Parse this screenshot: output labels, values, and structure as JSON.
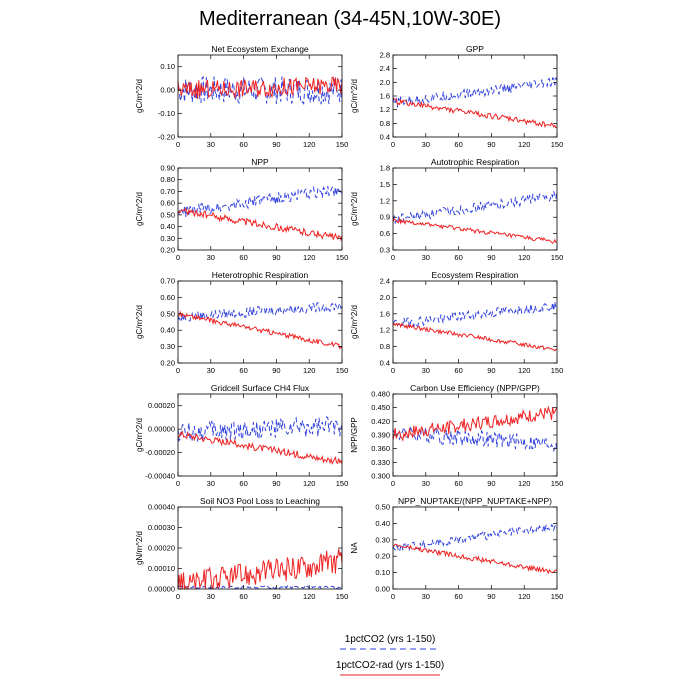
{
  "figure": {
    "title": "Mediterranean (34-45N,10W-30E)",
    "legend": [
      {
        "label": "1pctCO2 (yrs 1-150)",
        "color": "#3344dd",
        "style": "dashed"
      },
      {
        "label": "1pctCO2-rad (yrs 1-150)",
        "color": "#ee2222",
        "style": "solid"
      }
    ]
  },
  "chart_data": [
    {
      "type": "line",
      "title": "Net Ecosystem Exchange",
      "xlabel": "",
      "ylabel": "gC/m^2/d",
      "xlim": [
        0,
        150
      ],
      "ylim": [
        -0.2,
        0.15
      ],
      "xticks": [
        0,
        30,
        60,
        90,
        120,
        150
      ],
      "yticks": [
        -0.2,
        -0.1,
        0,
        0.1
      ],
      "ytick_labels": [
        "-0.20",
        "-0.10",
        "0.00",
        "0.10"
      ],
      "series": [
        {
          "name": "1pctCO2 (yrs 1-150)",
          "start": 0.0,
          "end": 0.0,
          "noise": 0.06
        },
        {
          "name": "1pctCO2-rad (yrs 1-150)",
          "start": 0.0,
          "end": 0.02,
          "noise": 0.04
        }
      ]
    },
    {
      "type": "line",
      "title": "GPP",
      "xlabel": "",
      "ylabel": "gC/m^2/d",
      "xlim": [
        0,
        150
      ],
      "ylim": [
        0.4,
        2.8
      ],
      "xticks": [
        0,
        30,
        60,
        90,
        120,
        150
      ],
      "yticks": [
        0.4,
        0.8,
        1.2,
        1.6,
        2.0,
        2.4,
        2.8
      ],
      "ytick_labels": [
        "0.4",
        "0.8",
        "1.2",
        "1.6",
        "2.0",
        "2.4",
        "2.8"
      ],
      "series": [
        {
          "name": "1pctCO2 (yrs 1-150)",
          "start": 1.4,
          "end": 2.0,
          "noise": 0.15
        },
        {
          "name": "1pctCO2-rad (yrs 1-150)",
          "start": 1.45,
          "end": 0.72,
          "noise": 0.08
        }
      ]
    },
    {
      "type": "line",
      "title": "NPP",
      "xlabel": "",
      "ylabel": "gC/m^2/d",
      "xlim": [
        0,
        150
      ],
      "ylim": [
        0.2,
        0.9
      ],
      "xticks": [
        0,
        30,
        60,
        90,
        120,
        150
      ],
      "yticks": [
        0.2,
        0.3,
        0.4,
        0.5,
        0.6,
        0.7,
        0.8,
        0.9
      ],
      "ytick_labels": [
        "0.20",
        "0.30",
        "0.40",
        "0.50",
        "0.60",
        "0.70",
        "0.80",
        "0.90"
      ],
      "series": [
        {
          "name": "1pctCO2 (yrs 1-150)",
          "start": 0.52,
          "end": 0.72,
          "noise": 0.05
        },
        {
          "name": "1pctCO2-rad (yrs 1-150)",
          "start": 0.54,
          "end": 0.3,
          "noise": 0.03
        }
      ]
    },
    {
      "type": "line",
      "title": "Autotrophic Respiration",
      "xlabel": "",
      "ylabel": "gC/m^2/d",
      "xlim": [
        0,
        150
      ],
      "ylim": [
        0.3,
        1.8
      ],
      "xticks": [
        0,
        30,
        60,
        90,
        120,
        150
      ],
      "yticks": [
        0.3,
        0.6,
        0.9,
        1.2,
        1.5,
        1.8
      ],
      "ytick_labels": [
        "0.3",
        "0.6",
        "0.9",
        "1.2",
        "1.5",
        "1.8"
      ],
      "series": [
        {
          "name": "1pctCO2 (yrs 1-150)",
          "start": 0.85,
          "end": 1.3,
          "noise": 0.09
        },
        {
          "name": "1pctCO2-rad (yrs 1-150)",
          "start": 0.85,
          "end": 0.45,
          "noise": 0.04
        }
      ]
    },
    {
      "type": "line",
      "title": "Heterotrophic Respiration",
      "xlabel": "",
      "ylabel": "gC/m^2/d",
      "xlim": [
        0,
        150
      ],
      "ylim": [
        0.2,
        0.7
      ],
      "xticks": [
        0,
        30,
        60,
        90,
        120,
        150
      ],
      "yticks": [
        0.2,
        0.3,
        0.4,
        0.5,
        0.6,
        0.7
      ],
      "ytick_labels": [
        "0.20",
        "0.30",
        "0.40",
        "0.50",
        "0.60",
        "0.70"
      ],
      "series": [
        {
          "name": "1pctCO2 (yrs 1-150)",
          "start": 0.48,
          "end": 0.55,
          "noise": 0.03
        },
        {
          "name": "1pctCO2-rad (yrs 1-150)",
          "start": 0.5,
          "end": 0.3,
          "noise": 0.015
        }
      ]
    },
    {
      "type": "line",
      "title": "Ecosystem Respiration",
      "xlabel": "",
      "ylabel": "gC/m^2/d",
      "xlim": [
        0,
        150
      ],
      "ylim": [
        0.4,
        2.4
      ],
      "xticks": [
        0,
        30,
        60,
        90,
        120,
        150
      ],
      "yticks": [
        0.4,
        0.8,
        1.2,
        1.6,
        2.0,
        2.4
      ],
      "ytick_labels": [
        "0.4",
        "0.8",
        "1.2",
        "1.6",
        "2.0",
        "2.4"
      ],
      "series": [
        {
          "name": "1pctCO2 (yrs 1-150)",
          "start": 1.35,
          "end": 1.8,
          "noise": 0.12
        },
        {
          "name": "1pctCO2-rad (yrs 1-150)",
          "start": 1.35,
          "end": 0.72,
          "noise": 0.05
        }
      ]
    },
    {
      "type": "line",
      "title": "Gridcell Surface CH4 Flux",
      "xlabel": "",
      "ylabel": "gC/m^2/d",
      "xlim": [
        0,
        150
      ],
      "ylim": [
        -0.0004,
        0.0003
      ],
      "xticks": [
        0,
        30,
        60,
        90,
        120,
        150
      ],
      "yticks": [
        -0.0004,
        -0.0002,
        0,
        0.0002
      ],
      "ytick_labels": [
        "-0.00040",
        "-0.00020",
        "0.00000",
        "0.00020"
      ],
      "series": [
        {
          "name": "1pctCO2 (yrs 1-150)",
          "start": -3e-05,
          "end": 2e-05,
          "noise": 9e-05
        },
        {
          "name": "1pctCO2-rad (yrs 1-150)",
          "start": -4e-05,
          "end": -0.00028,
          "noise": 3e-05
        }
      ]
    },
    {
      "type": "line",
      "title": "Carbon Use Efficiency (NPP/GPP)",
      "xlabel": "",
      "ylabel": "NPP/GPP",
      "xlim": [
        0,
        150
      ],
      "ylim": [
        0.3,
        0.48
      ],
      "xticks": [
        0,
        30,
        60,
        90,
        120,
        150
      ],
      "yticks": [
        0.3,
        0.33,
        0.36,
        0.39,
        0.42,
        0.45,
        0.48
      ],
      "ytick_labels": [
        "0.300",
        "0.330",
        "0.360",
        "0.390",
        "0.420",
        "0.450",
        "0.480"
      ],
      "series": [
        {
          "name": "1pctCO2 (yrs 1-150)",
          "start": 0.395,
          "end": 0.37,
          "noise": 0.018
        },
        {
          "name": "1pctCO2-rad (yrs 1-150)",
          "start": 0.39,
          "end": 0.44,
          "noise": 0.015
        }
      ]
    },
    {
      "type": "line",
      "title": "Soil NO3 Pool Loss to Leaching",
      "xlabel": "",
      "ylabel": "gN/m^2/d",
      "xlim": [
        0,
        150
      ],
      "ylim": [
        0,
        0.0004
      ],
      "xticks": [
        0,
        30,
        60,
        90,
        120,
        150
      ],
      "yticks": [
        0,
        0.0001,
        0.0002,
        0.0003,
        0.0004
      ],
      "ytick_labels": [
        "0.00000",
        "0.00010",
        "0.00020",
        "0.00030",
        "0.00040"
      ],
      "series": [
        {
          "name": "1pctCO2 (yrs 1-150)",
          "start": 8e-06,
          "end": 8e-06,
          "noise": 6e-06
        },
        {
          "name": "1pctCO2-rad (yrs 1-150)",
          "start": 2e-05,
          "end": 0.00014,
          "noise": 6e-05
        }
      ]
    },
    {
      "type": "line",
      "title": "NPP_NUPTAKE/(NPP_NUPTAKE+NPP)",
      "xlabel": "",
      "ylabel": "NA",
      "xlim": [
        0,
        150
      ],
      "ylim": [
        0,
        0.5
      ],
      "xticks": [
        0,
        30,
        60,
        90,
        120,
        150
      ],
      "yticks": [
        0,
        0.1,
        0.2,
        0.3,
        0.4,
        0.5
      ],
      "ytick_labels": [
        "0.00",
        "0.10",
        "0.20",
        "0.30",
        "0.40",
        "0.50"
      ],
      "series": [
        {
          "name": "1pctCO2 (yrs 1-150)",
          "start": 0.25,
          "end": 0.38,
          "noise": 0.025
        },
        {
          "name": "1pctCO2-rad (yrs 1-150)",
          "start": 0.27,
          "end": 0.1,
          "noise": 0.015
        }
      ]
    }
  ]
}
